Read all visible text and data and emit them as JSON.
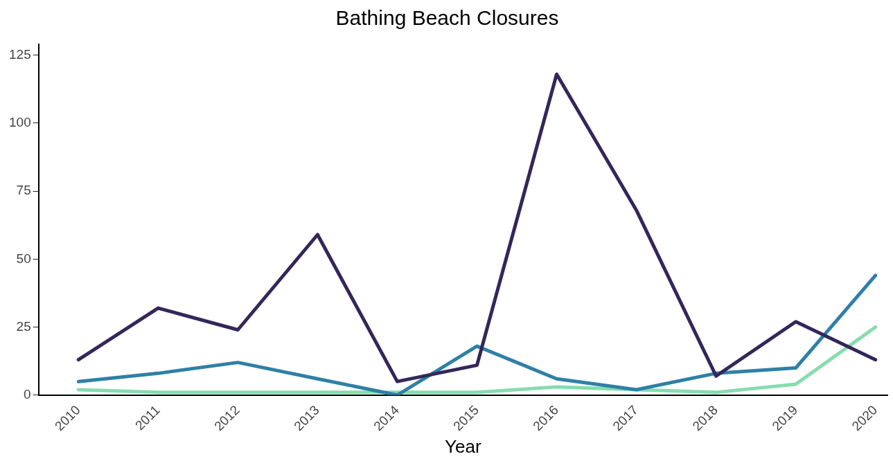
{
  "chart_data": {
    "type": "line",
    "title": "Bathing Beach Closures",
    "xlabel": "Year",
    "x": [
      2010,
      2011,
      2012,
      2013,
      2014,
      2015,
      2016,
      2017,
      2018,
      2019,
      2020
    ],
    "xlim": [
      2009.5,
      2020.15
    ],
    "xticks": [
      2010,
      2011,
      2012,
      2013,
      2014,
      2015,
      2016,
      2017,
      2018,
      2019,
      2020
    ],
    "ylim": [
      0,
      129
    ],
    "yticks": [
      0,
      25,
      50,
      75,
      100,
      125
    ],
    "grid": false,
    "legend": false,
    "marker": "none",
    "line_style": "solid",
    "series": [
      {
        "color": "#33275a",
        "values": [
          13,
          32,
          24,
          59,
          5,
          11,
          118,
          68,
          7,
          27,
          13
        ]
      },
      {
        "color": "#2f80a6",
        "values": [
          5,
          8,
          12,
          6,
          0,
          18,
          6,
          2,
          8,
          10,
          44
        ]
      },
      {
        "color": "#86dcae",
        "values": [
          2,
          1,
          1,
          1,
          1,
          1,
          3,
          2,
          1,
          4,
          25
        ]
      }
    ]
  }
}
